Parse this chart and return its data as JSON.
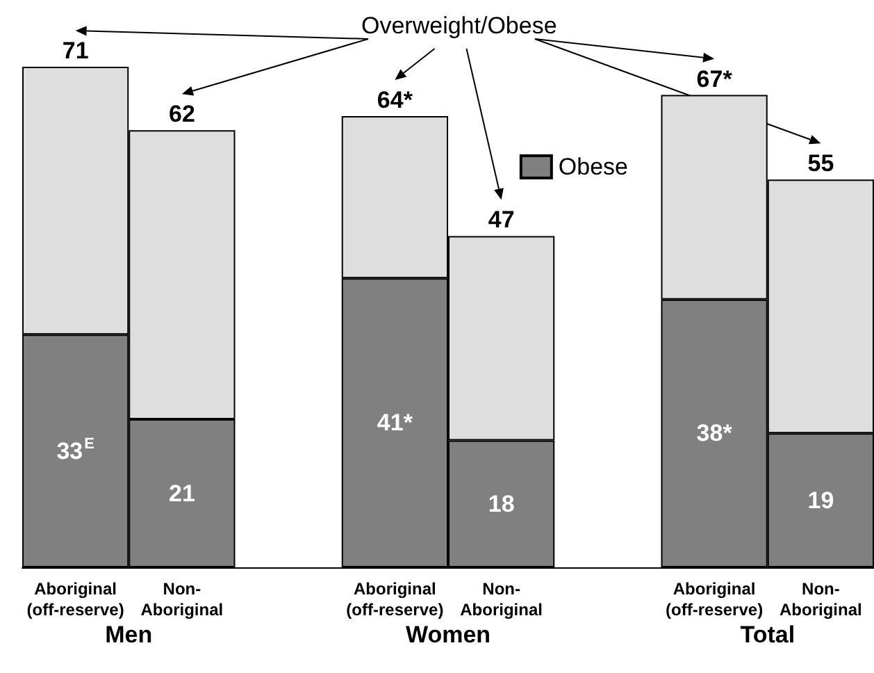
{
  "chart_data": {
    "type": "bar",
    "stacked": true,
    "categories": [
      "Aboriginal\n(off-reserve)",
      "Non-\nAboriginal",
      null,
      "Aboriginal\n(off-reserve)",
      "Non-\nAboriginal",
      null,
      "Aboriginal\n(off-reserve)",
      "Non-\nAboriginal"
    ],
    "series": [
      {
        "name": "Obese",
        "color": "#808080",
        "values": [
          33,
          21,
          null,
          41,
          18,
          null,
          38,
          19
        ],
        "value_labels": [
          "33$^{E}$",
          "21",
          null,
          "41*",
          "18",
          null,
          "38*",
          "19"
        ]
      },
      {
        "color": "#dedede",
        "values": [
          38,
          41,
          null,
          23,
          29,
          null,
          29,
          36
        ]
      }
    ],
    "totals": [
      "71",
      "62",
      null,
      "64*",
      "47",
      null,
      "67*",
      "55"
    ],
    "annotations": [
      "Overweight/Obese",
      "Men",
      "Women",
      "Total"
    ],
    "legend": "top right"
  }
}
